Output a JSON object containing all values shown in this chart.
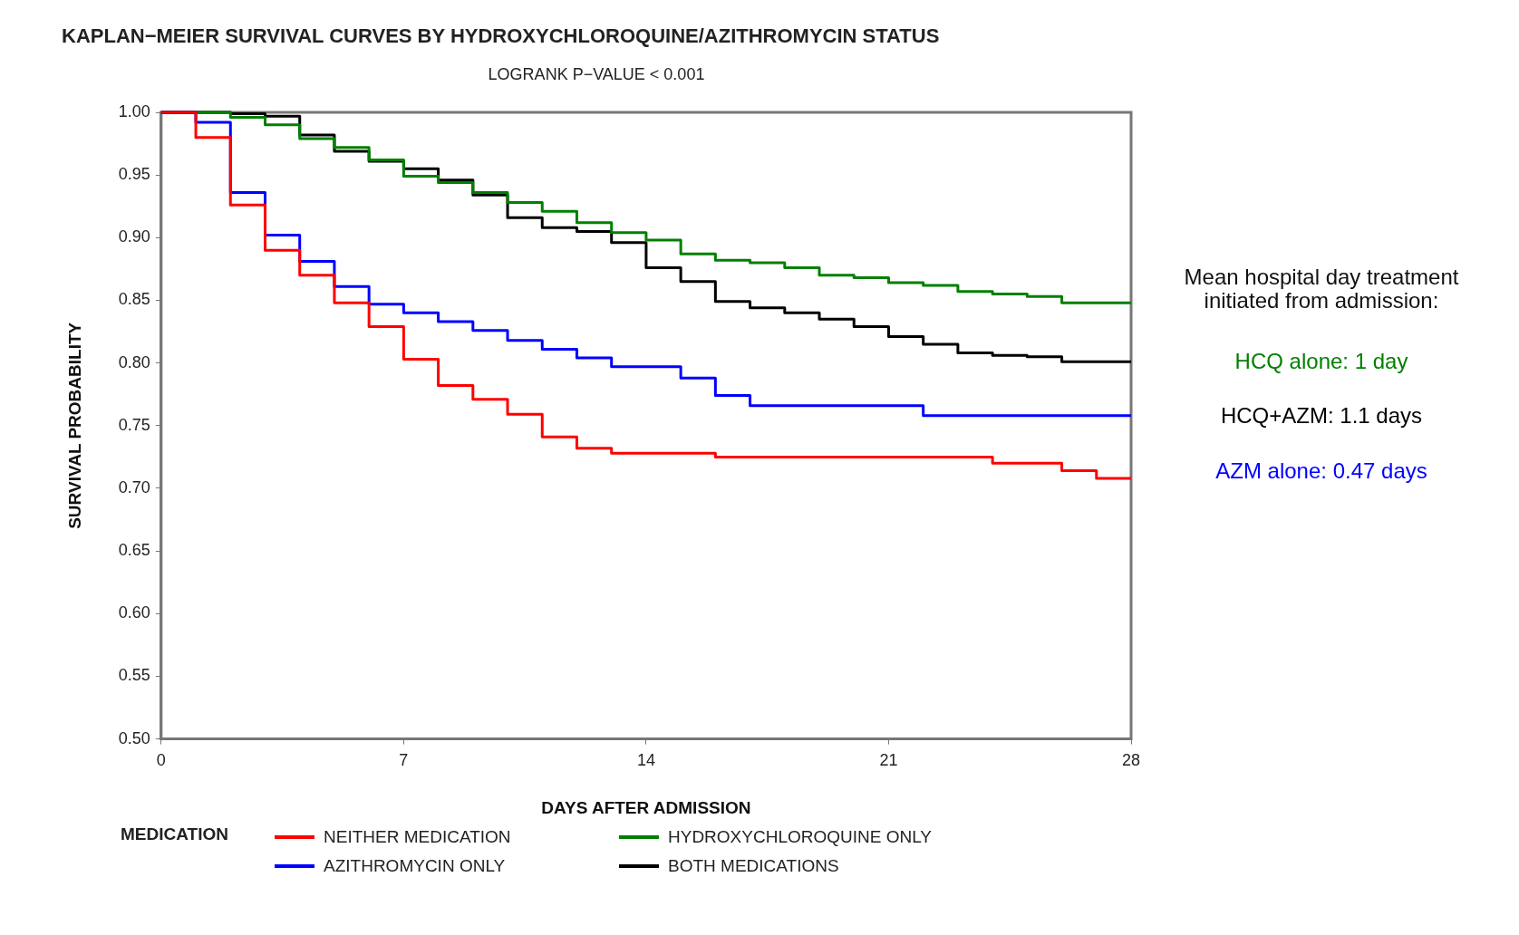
{
  "chart_data": {
    "type": "step",
    "title": "KAPLAN−MEIER SURVIVAL CURVES BY HYDROXYCHLOROQUINE/AZITHROMYCIN STATUS",
    "subtitle": "LOGRANK P−VALUE < 0.001",
    "xlabel": "DAYS AFTER ADMISSION",
    "ylabel": "SURVIVAL PROBABILITY",
    "legend_title": "MEDICATION",
    "legend": "bottom",
    "grid": false,
    "x": [
      0,
      1,
      2,
      3,
      4,
      5,
      6,
      7,
      8,
      9,
      10,
      11,
      12,
      13,
      14,
      15,
      16,
      17,
      18,
      19,
      20,
      21,
      22,
      23,
      24,
      25,
      26,
      27,
      28
    ],
    "xlim": [
      0,
      28
    ],
    "xticks": [
      0,
      7,
      14,
      21,
      28
    ],
    "ylim": [
      0.5,
      1
    ],
    "yticks": [
      {
        "value": 0.5,
        "label": "0.50"
      },
      {
        "value": 0.55,
        "label": "0.55"
      },
      {
        "value": 0.6,
        "label": "0.60"
      },
      {
        "value": 0.65,
        "label": "0.65"
      },
      {
        "value": 0.7,
        "label": "0.70"
      },
      {
        "value": 0.75,
        "label": "0.75"
      },
      {
        "value": 0.8,
        "label": "0.80"
      },
      {
        "value": 0.85,
        "label": "0.85"
      },
      {
        "value": 0.9,
        "label": "0.90"
      },
      {
        "value": 0.95,
        "label": "0.95"
      },
      {
        "value": 1,
        "label": "1.00"
      }
    ],
    "series": [
      {
        "name": "NEITHER MEDICATION",
        "color": "#ff0000",
        "values": [
          1,
          0.98,
          0.926,
          0.89,
          0.87,
          0.848,
          0.829,
          0.803,
          0.782,
          0.771,
          0.759,
          0.741,
          0.732,
          0.728,
          0.728,
          0.728,
          0.725,
          0.725,
          0.725,
          0.725,
          0.725,
          0.725,
          0.725,
          0.725,
          0.72,
          0.72,
          0.714,
          0.708,
          0.708
        ]
      },
      {
        "name": "AZITHROMYCIN ONLY",
        "color": "#0000ff",
        "values": [
          1,
          0.992,
          0.936,
          0.902,
          0.881,
          0.861,
          0.847,
          0.84,
          0.833,
          0.826,
          0.818,
          0.811,
          0.804,
          0.797,
          0.797,
          0.788,
          0.774,
          0.766,
          0.766,
          0.766,
          0.766,
          0.766,
          0.758,
          0.758,
          0.758,
          0.758,
          0.758,
          0.758,
          0.758
        ]
      },
      {
        "name": "HYDROXYCHLOROQUINE ONLY",
        "color": "#008000",
        "values": [
          1,
          1,
          0.996,
          0.99,
          0.979,
          0.972,
          0.962,
          0.949,
          0.944,
          0.936,
          0.928,
          0.921,
          0.912,
          0.904,
          0.898,
          0.887,
          0.882,
          0.88,
          0.876,
          0.87,
          0.868,
          0.864,
          0.862,
          0.857,
          0.855,
          0.853,
          0.848,
          0.848,
          0.848
        ]
      },
      {
        "name": "BOTH MEDICATIONS",
        "color": "#000000",
        "values": [
          1,
          1,
          0.999,
          0.997,
          0.982,
          0.969,
          0.961,
          0.955,
          0.946,
          0.934,
          0.916,
          0.908,
          0.905,
          0.896,
          0.876,
          0.865,
          0.849,
          0.844,
          0.84,
          0.835,
          0.829,
          0.821,
          0.815,
          0.808,
          0.806,
          0.805,
          0.801,
          0.801,
          0.801
        ]
      }
    ],
    "annotations": [
      "Mean hospital day treatment initiated from admission:",
      "HCQ alone: 1 day",
      "HCQ+AZM: 1.1 days",
      "AZM alone: 0.47 days"
    ]
  }
}
